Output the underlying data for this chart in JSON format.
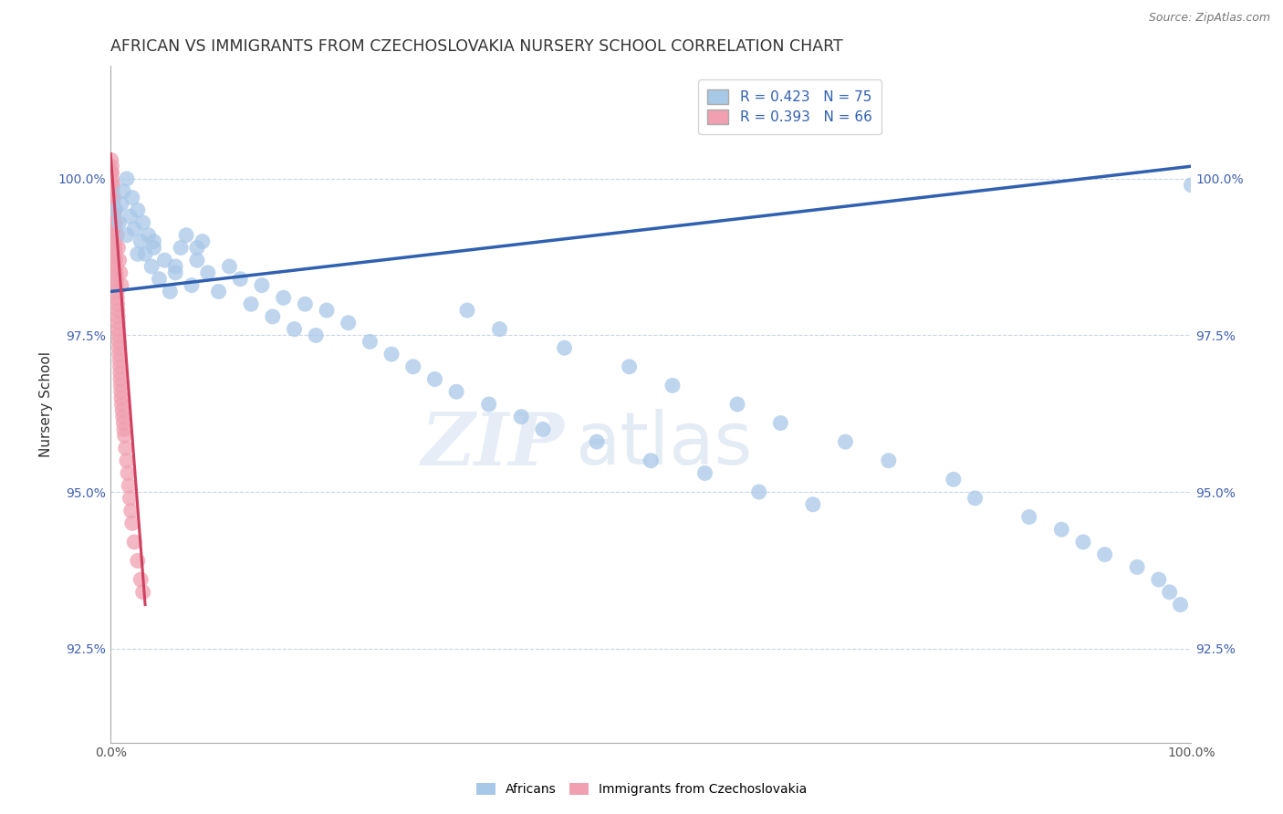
{
  "title": "AFRICAN VS IMMIGRANTS FROM CZECHOSLOVAKIA NURSERY SCHOOL CORRELATION CHART",
  "source": "Source: ZipAtlas.com",
  "ylabel": "Nursery School",
  "xlim": [
    0.0,
    100.0
  ],
  "ylim": [
    91.0,
    101.8
  ],
  "yticks": [
    92.5,
    95.0,
    97.5,
    100.0
  ],
  "ytick_labels": [
    "92.5%",
    "95.0%",
    "97.5%",
    "100.0%"
  ],
  "xticks": [
    0.0,
    100.0
  ],
  "xtick_labels": [
    "0.0%",
    "100.0%"
  ],
  "legend_R_blue": "R = 0.423",
  "legend_N_blue": "N = 75",
  "legend_R_pink": "R = 0.393",
  "legend_N_pink": "N = 66",
  "blue_color": "#a8c8e8",
  "pink_color": "#f0a0b0",
  "blue_line_color": "#3060b0",
  "pink_line_color": "#d04060",
  "blue_scatter_x": [
    0.5,
    0.8,
    1.0,
    1.2,
    1.5,
    1.8,
    2.0,
    2.2,
    2.5,
    2.8,
    3.0,
    3.2,
    3.5,
    3.8,
    4.0,
    4.5,
    5.0,
    5.5,
    6.0,
    6.5,
    7.0,
    7.5,
    8.0,
    8.5,
    9.0,
    10.0,
    11.0,
    12.0,
    13.0,
    14.0,
    15.0,
    16.0,
    17.0,
    18.0,
    19.0,
    20.0,
    22.0,
    24.0,
    26.0,
    28.0,
    30.0,
    32.0,
    35.0,
    38.0,
    40.0,
    45.0,
    50.0,
    55.0,
    60.0,
    65.0,
    33.0,
    36.0,
    42.0,
    48.0,
    52.0,
    58.0,
    62.0,
    68.0,
    72.0,
    78.0,
    80.0,
    85.0,
    88.0,
    90.0,
    92.0,
    95.0,
    97.0,
    98.0,
    99.0,
    100.0,
    1.5,
    2.5,
    4.0,
    6.0,
    8.0
  ],
  "blue_scatter_y": [
    99.5,
    99.3,
    99.6,
    99.8,
    100.0,
    99.4,
    99.7,
    99.2,
    99.5,
    99.0,
    99.3,
    98.8,
    99.1,
    98.6,
    98.9,
    98.4,
    98.7,
    98.2,
    98.6,
    98.9,
    99.1,
    98.3,
    98.7,
    99.0,
    98.5,
    98.2,
    98.6,
    98.4,
    98.0,
    98.3,
    97.8,
    98.1,
    97.6,
    98.0,
    97.5,
    97.9,
    97.7,
    97.4,
    97.2,
    97.0,
    96.8,
    96.6,
    96.4,
    96.2,
    96.0,
    95.8,
    95.5,
    95.3,
    95.0,
    94.8,
    97.9,
    97.6,
    97.3,
    97.0,
    96.7,
    96.4,
    96.1,
    95.8,
    95.5,
    95.2,
    94.9,
    94.6,
    94.4,
    94.2,
    94.0,
    93.8,
    93.6,
    93.4,
    93.2,
    99.9,
    99.1,
    98.8,
    99.0,
    98.5,
    98.9
  ],
  "pink_scatter_x": [
    0.05,
    0.08,
    0.1,
    0.12,
    0.15,
    0.18,
    0.2,
    0.22,
    0.25,
    0.28,
    0.3,
    0.32,
    0.35,
    0.38,
    0.4,
    0.42,
    0.45,
    0.48,
    0.5,
    0.52,
    0.55,
    0.58,
    0.6,
    0.62,
    0.65,
    0.68,
    0.7,
    0.72,
    0.75,
    0.78,
    0.8,
    0.82,
    0.85,
    0.88,
    0.9,
    0.92,
    0.95,
    0.98,
    1.0,
    1.05,
    1.1,
    1.15,
    1.2,
    1.25,
    1.3,
    1.4,
    1.5,
    1.6,
    1.7,
    1.8,
    1.9,
    2.0,
    2.2,
    2.5,
    2.8,
    3.0,
    0.1,
    0.2,
    0.3,
    0.4,
    0.5,
    0.6,
    0.7,
    0.8,
    0.9,
    1.0
  ],
  "pink_scatter_y": [
    100.3,
    100.1,
    100.2,
    100.0,
    99.9,
    99.8,
    99.7,
    99.6,
    99.5,
    99.4,
    99.3,
    99.2,
    99.1,
    99.0,
    98.9,
    98.8,
    98.7,
    98.6,
    98.5,
    98.4,
    98.3,
    98.2,
    98.1,
    98.0,
    97.9,
    97.8,
    97.7,
    97.6,
    97.5,
    97.4,
    97.3,
    97.2,
    97.1,
    97.0,
    96.9,
    96.8,
    96.7,
    96.6,
    96.5,
    96.4,
    96.3,
    96.2,
    96.1,
    96.0,
    95.9,
    95.7,
    95.5,
    95.3,
    95.1,
    94.9,
    94.7,
    94.5,
    94.2,
    93.9,
    93.6,
    93.4,
    100.1,
    99.9,
    99.7,
    99.5,
    99.3,
    99.1,
    98.9,
    98.7,
    98.5,
    98.3
  ],
  "blue_line_x": [
    0.0,
    100.0
  ],
  "blue_line_y": [
    98.2,
    100.2
  ],
  "pink_line_x": [
    0.0,
    3.2
  ],
  "pink_line_y": [
    100.4,
    93.2
  ],
  "watermark_zip": "ZIP",
  "watermark_atlas": "atlas",
  "background_color": "#ffffff",
  "grid_color": "#c8d4e8",
  "title_fontsize": 12.5,
  "axis_label_fontsize": 11,
  "tick_fontsize": 10,
  "legend_fontsize": 11
}
